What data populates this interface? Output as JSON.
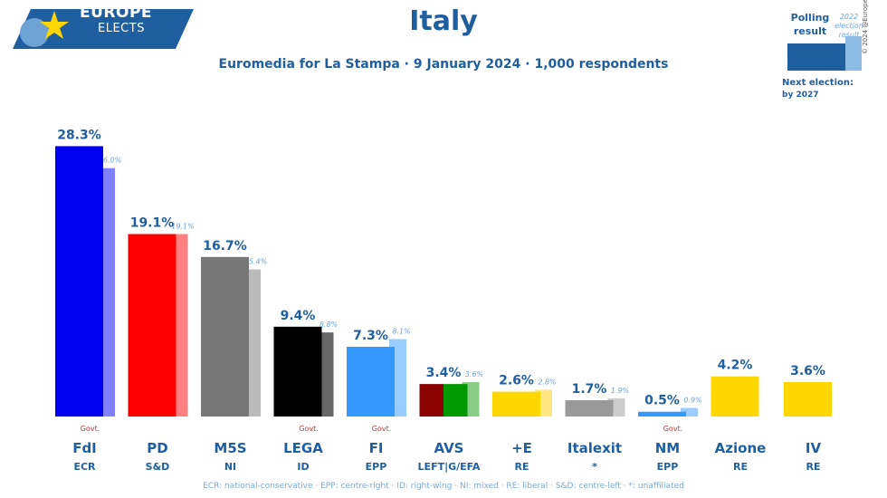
{
  "header": {
    "logo_line1": "EUROPE",
    "logo_line2": "ELECTS",
    "title": "Italy",
    "subtitle": "Euromedia for La Stampa · 9 January 2024 · 1,000 respondents"
  },
  "legend": {
    "polling_label": "Polling result",
    "election_label": "2022 election result",
    "next_election_label": "Next election:",
    "next_election_value": "by 2027",
    "copyright": "© 2024 @EuropeElects"
  },
  "footnote": "ECR: national-conservative · EPP: centre-right · ID: right-wing · NI: mixed · RE: liberal · S&D: centre-left · *: unaffiliated",
  "colors": {
    "text_blue": "#1f5fa0",
    "light_blue_text": "#6fa3d6",
    "govt_red": "#d32f2f"
  },
  "chart_data": {
    "type": "bar",
    "ylim": [
      0,
      30
    ],
    "grid": false,
    "govt_label": "Govt.",
    "categories": [
      "FdI",
      "PD",
      "M5S",
      "LEGA",
      "FI",
      "AVS",
      "+E",
      "Italexit",
      "NM",
      "Azione",
      "IV"
    ],
    "groups": [
      "ECR",
      "S&D",
      "NI",
      "ID",
      "EPP",
      "LEFT|G/EFA",
      "RE",
      "*",
      "EPP",
      "RE",
      "RE"
    ],
    "series": [
      {
        "values": [
          28.3,
          19.1,
          16.7,
          9.4,
          7.3,
          3.4,
          2.6,
          1.7,
          0.5,
          4.2,
          3.6
        ],
        "labels": [
          "28.3%",
          "19.1%",
          "16.7%",
          "9.4%",
          "7.3%",
          "3.4%",
          "2.6%",
          "1.7%",
          "0.5%",
          "4.2%",
          "3.6%"
        ]
      },
      {
        "values": [
          26.0,
          19.1,
          15.4,
          8.8,
          8.1,
          3.6,
          2.8,
          1.9,
          0.9,
          null,
          null
        ],
        "labels": [
          "26.0%",
          "19.1%",
          "15.4%",
          "8.8%",
          "8.1%",
          "3.6%",
          "2.8%",
          "1.9%",
          "0.9%",
          "",
          ""
        ]
      }
    ],
    "poll_colors": [
      "#0000ee",
      "#ff0000",
      "#777777",
      "#000000",
      "#3399ff",
      [
        "#8b0000",
        "#009900"
      ],
      "#ffd700",
      "#999999",
      "#3399ff",
      "#ffd700",
      "#ffd700"
    ],
    "election_colors": [
      "#8080ff",
      "#ff8080",
      "#bbbbbb",
      "#666666",
      "#99ccff",
      "#88cc88",
      "#ffe680",
      "#cccccc",
      "#99ccff",
      null,
      null
    ],
    "govt": [
      true,
      false,
      false,
      true,
      true,
      false,
      false,
      false,
      true,
      false,
      false
    ]
  }
}
